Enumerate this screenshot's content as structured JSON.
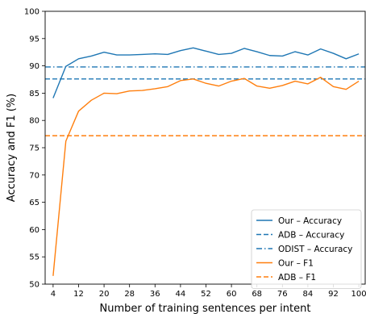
{
  "chart_data": {
    "type": "line",
    "xlabel": "Number of training sentences per intent",
    "ylabel": "Accuracy and F1 (%)",
    "ylim": [
      50,
      100
    ],
    "xlim": [
      1.5,
      102
    ],
    "x_ticks": [
      4,
      12,
      20,
      28,
      36,
      44,
      52,
      60,
      68,
      76,
      84,
      92,
      100
    ],
    "y_ticks": [
      50,
      55,
      60,
      65,
      70,
      75,
      80,
      85,
      90,
      95,
      100
    ],
    "grid": false,
    "legend_position": "bottom-right",
    "x": [
      4,
      8,
      12,
      16,
      20,
      24,
      28,
      32,
      36,
      40,
      44,
      48,
      52,
      56,
      60,
      64,
      68,
      72,
      76,
      80,
      84,
      88,
      92,
      96,
      100
    ],
    "series": [
      {
        "name": "Our – Accuracy",
        "color": "#1f77b4",
        "style": "solid",
        "values": [
          84.1,
          89.9,
          91.3,
          91.8,
          92.5,
          92.0,
          92.0,
          92.1,
          92.2,
          92.1,
          92.8,
          93.3,
          92.7,
          92.1,
          92.3,
          93.2,
          92.6,
          91.9,
          91.8,
          92.6,
          92.0,
          93.1,
          92.3,
          91.3,
          92.2
        ]
      },
      {
        "name": "ADB – Accuracy",
        "color": "#1f77b4",
        "style": "dashed",
        "constant": 87.6
      },
      {
        "name": "ODIST – Accuracy",
        "color": "#1f77b4",
        "style": "dashdot",
        "constant": 89.8
      },
      {
        "name": "Our – F1",
        "color": "#ff7f0e",
        "style": "solid",
        "values": [
          51.5,
          76.2,
          81.7,
          83.7,
          85.0,
          84.9,
          85.4,
          85.5,
          85.8,
          86.2,
          87.3,
          87.6,
          86.8,
          86.3,
          87.2,
          87.7,
          86.3,
          85.9,
          86.4,
          87.2,
          86.7,
          87.9,
          86.2,
          85.7,
          87.2
        ]
      },
      {
        "name": "ADB – F1",
        "color": "#ff7f0e",
        "style": "dashed",
        "constant": 77.2
      }
    ]
  }
}
